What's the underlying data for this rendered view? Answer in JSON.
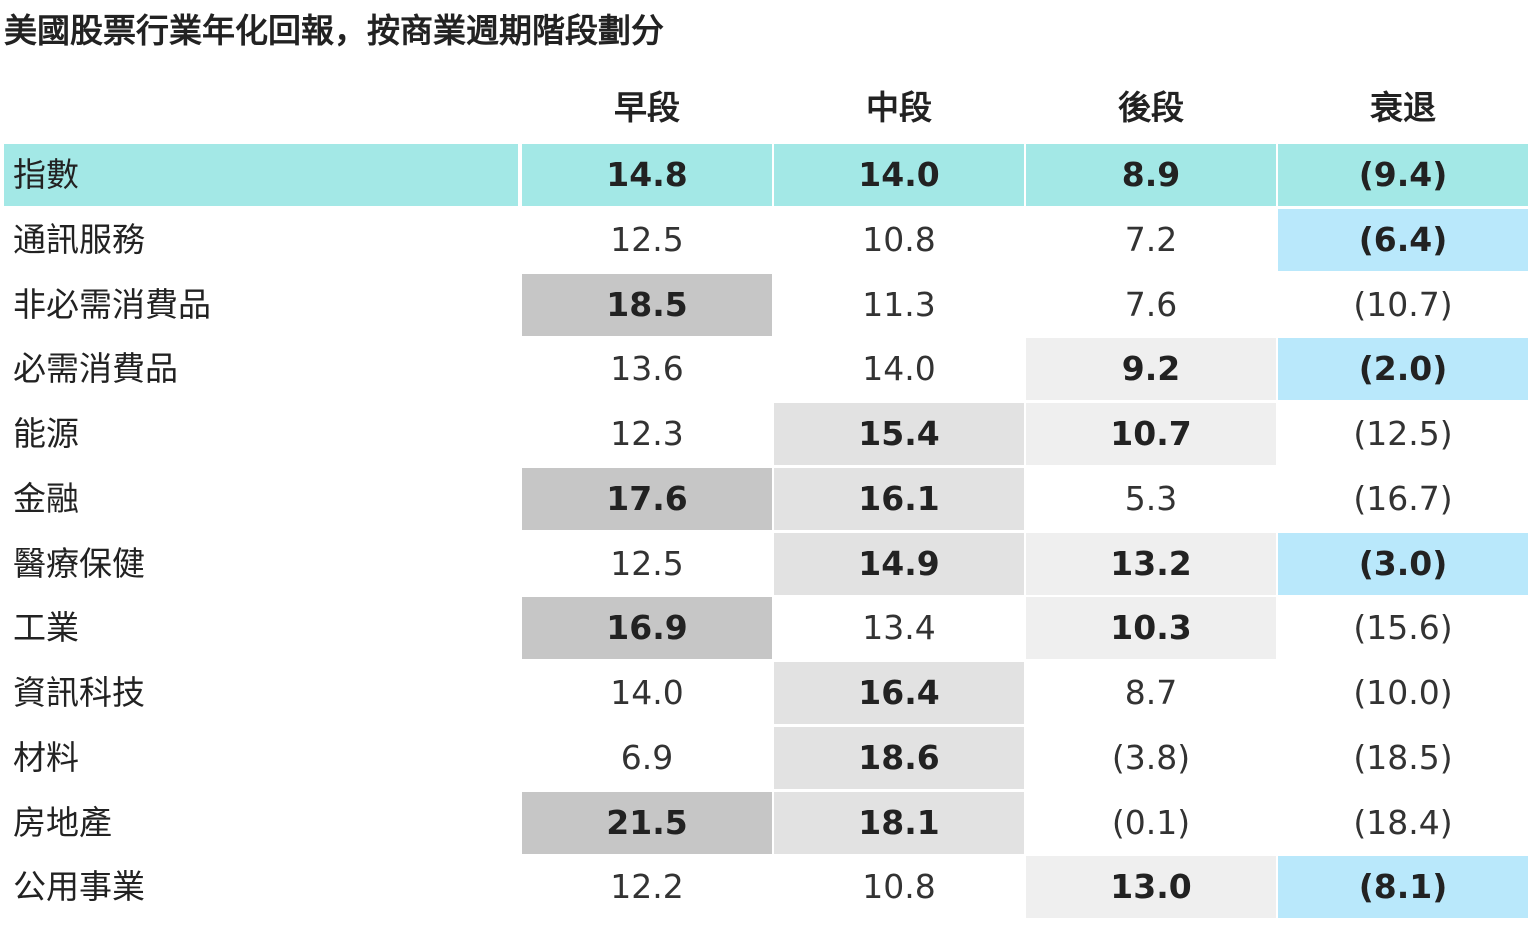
{
  "title": "美國股票行業年化回報，按商業週期階段劃分",
  "chart_data": {
    "type": "table",
    "columns": [
      "早段",
      "中段",
      "後段",
      "衰退"
    ],
    "rows": [
      {
        "label": "指數",
        "values": [
          "14.8",
          "14.0",
          "8.9",
          "(9.4)"
        ],
        "fills": [
          "#a3e8e6",
          "#a3e8e6",
          "#a3e8e6",
          "#a3e8e6"
        ],
        "bold": [
          true,
          true,
          true,
          true
        ]
      },
      {
        "label": "通訊服務",
        "values": [
          "12.5",
          "10.8",
          "7.2",
          "(6.4)"
        ],
        "fills": [
          "",
          "",
          "",
          "#b9e8fb"
        ],
        "bold": [
          false,
          false,
          false,
          true
        ]
      },
      {
        "label": "非必需消費品",
        "values": [
          "18.5",
          "11.3",
          "7.6",
          "(10.7)"
        ],
        "fills": [
          "#c6c6c6",
          "",
          "",
          ""
        ],
        "bold": [
          true,
          false,
          false,
          false
        ]
      },
      {
        "label": "必需消費品",
        "values": [
          "13.6",
          "14.0",
          "9.2",
          "(2.0)"
        ],
        "fills": [
          "",
          "",
          "#efefef",
          "#b9e8fb"
        ],
        "bold": [
          false,
          false,
          true,
          true
        ]
      },
      {
        "label": "能源",
        "values": [
          "12.3",
          "15.4",
          "10.7",
          "(12.5)"
        ],
        "fills": [
          "",
          "#e2e2e2",
          "#efefef",
          ""
        ],
        "bold": [
          false,
          true,
          true,
          false
        ]
      },
      {
        "label": "金融",
        "values": [
          "17.6",
          "16.1",
          "5.3",
          "(16.7)"
        ],
        "fills": [
          "#c6c6c6",
          "#e2e2e2",
          "",
          ""
        ],
        "bold": [
          true,
          true,
          false,
          false
        ]
      },
      {
        "label": "醫療保健",
        "values": [
          "12.5",
          "14.9",
          "13.2",
          "(3.0)"
        ],
        "fills": [
          "",
          "#e2e2e2",
          "#efefef",
          "#b9e8fb"
        ],
        "bold": [
          false,
          true,
          true,
          true
        ]
      },
      {
        "label": "工業",
        "values": [
          "16.9",
          "13.4",
          "10.3",
          "(15.6)"
        ],
        "fills": [
          "#c6c6c6",
          "",
          "#efefef",
          ""
        ],
        "bold": [
          true,
          false,
          true,
          false
        ]
      },
      {
        "label": "資訊科技",
        "values": [
          "14.0",
          "16.4",
          "8.7",
          "(10.0)"
        ],
        "fills": [
          "",
          "#e2e2e2",
          "",
          ""
        ],
        "bold": [
          false,
          true,
          false,
          false
        ]
      },
      {
        "label": "材料",
        "values": [
          "6.9",
          "18.6",
          "(3.8)",
          "(18.5)"
        ],
        "fills": [
          "",
          "#e2e2e2",
          "",
          ""
        ],
        "bold": [
          false,
          true,
          false,
          false
        ]
      },
      {
        "label": "房地產",
        "values": [
          "21.5",
          "18.1",
          "(0.1)",
          "(18.4)"
        ],
        "fills": [
          "#c6c6c6",
          "#e2e2e2",
          "",
          ""
        ],
        "bold": [
          true,
          true,
          false,
          false
        ]
      },
      {
        "label": "公用事業",
        "values": [
          "12.2",
          "10.8",
          "13.0",
          "(8.1)"
        ],
        "fills": [
          "",
          "",
          "#efefef",
          "#b9e8fb"
        ],
        "bold": [
          false,
          false,
          true,
          true
        ]
      }
    ]
  }
}
